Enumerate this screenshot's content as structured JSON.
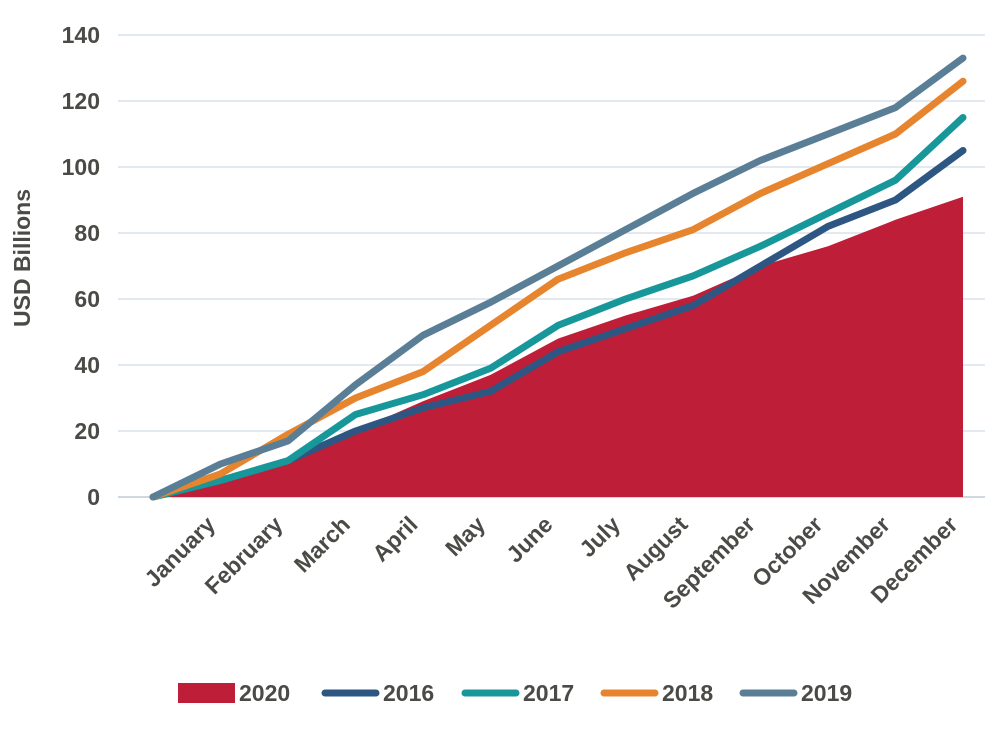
{
  "chart_data": {
    "type": "line",
    "title": "",
    "xlabel": "",
    "ylabel": "USD Billions",
    "ylim": [
      0,
      140
    ],
    "yticks": [
      0,
      20,
      40,
      60,
      80,
      100,
      120,
      140
    ],
    "grid": true,
    "legend_position": "bottom",
    "x_start_value": 0,
    "categories": [
      "January",
      "February",
      "March",
      "April",
      "May",
      "June",
      "July",
      "August",
      "September",
      "October",
      "November",
      "December"
    ],
    "series": [
      {
        "name": "2020",
        "kind": "area",
        "color": "#be1e37",
        "values": [
          5,
          10,
          20,
          29,
          37,
          48,
          55,
          61,
          70,
          76,
          84,
          91
        ]
      },
      {
        "name": "2016",
        "kind": "line",
        "color": "#2e5683",
        "values": [
          5,
          11,
          20,
          27,
          32,
          44,
          51,
          58,
          70,
          82,
          90,
          105
        ]
      },
      {
        "name": "2017",
        "kind": "line",
        "color": "#17979a",
        "values": [
          5,
          11,
          25,
          31,
          39,
          52,
          60,
          67,
          76,
          86,
          96,
          115
        ]
      },
      {
        "name": "2018",
        "kind": "line",
        "color": "#e7852e",
        "values": [
          7,
          19,
          30,
          38,
          52,
          66,
          74,
          81,
          92,
          101,
          110,
          126
        ]
      },
      {
        "name": "2019",
        "kind": "line",
        "color": "#5b7e97",
        "values": [
          10,
          17,
          34,
          49,
          59,
          70,
          81,
          92,
          102,
          110,
          118,
          133
        ]
      }
    ]
  }
}
